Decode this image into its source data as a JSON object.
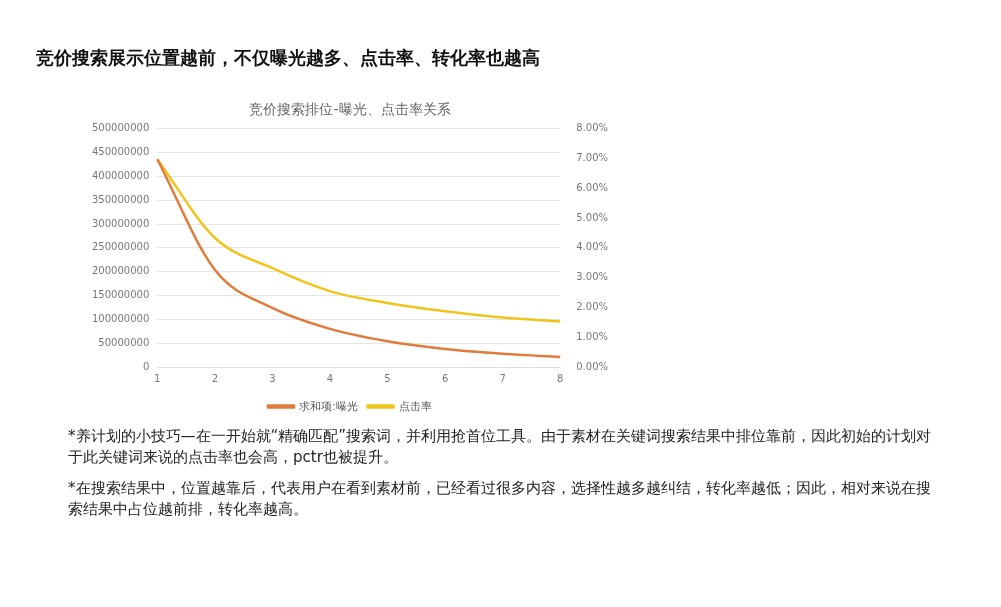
{
  "chart_data": {
    "type": "line",
    "title": "竞价搜索展示位置越前，不仅曝光越多、点击率、转化率也越高",
    "subtitle": "竞价搜索排位-曝光、点击率关系",
    "categories": [
      "1",
      "2",
      "3",
      "4",
      "5",
      "6",
      "7",
      "8"
    ],
    "series": [
      {
        "name": "求和项:曝光",
        "color": "#e07b39",
        "values": [
          436000000,
          204000000,
          124000000,
          80000000,
          54000000,
          38000000,
          28000000,
          21000000
        ]
      },
      {
        "name": "点击率",
        "color": "#f0c419",
        "axis": "y2",
        "values": [
          6.98,
          4.34,
          3.32,
          2.55,
          2.15,
          1.87,
          1.66,
          1.53
        ]
      }
    ],
    "ylim": [
      0,
      500000000
    ],
    "yticks": [
      0,
      50000000,
      100000000,
      150000000,
      200000000,
      250000000,
      300000000,
      350000000,
      400000000,
      450000000,
      500000000
    ],
    "y2lim": [
      0,
      8
    ],
    "y2ticks": [
      {
        "value": 0,
        "label": "0.00%"
      },
      {
        "value": 1,
        "label": "1.00%"
      },
      {
        "value": 2,
        "label": "2.00%"
      },
      {
        "value": 3,
        "label": "3.00%"
      },
      {
        "value": 4,
        "label": "4.00%"
      },
      {
        "value": 5,
        "label": "5.00%"
      },
      {
        "value": 6,
        "label": "6.00%"
      },
      {
        "value": 7,
        "label": "7.00%"
      },
      {
        "value": 8,
        "label": "8.00%"
      }
    ],
    "grid": "y",
    "legend": "bottom",
    "marker": "none",
    "line_style": "solid",
    "annotations": [
      "*养计划的小技巧—在一开始就“精确匹配”搜索词，并利用抢首位工具。由于素材在关键词搜索结果中排位靠前，因此初始的计划对于此关键词来说的点击率也会高，pctr也被提升。",
      "*在搜索结果中，位置越靠后，代表用户在看到素材前，已经看过很多内容，选择性越多越纠结，转化率越低；因此，相对来说在搜索结果中占位越前排，转化率越高。"
    ]
  }
}
